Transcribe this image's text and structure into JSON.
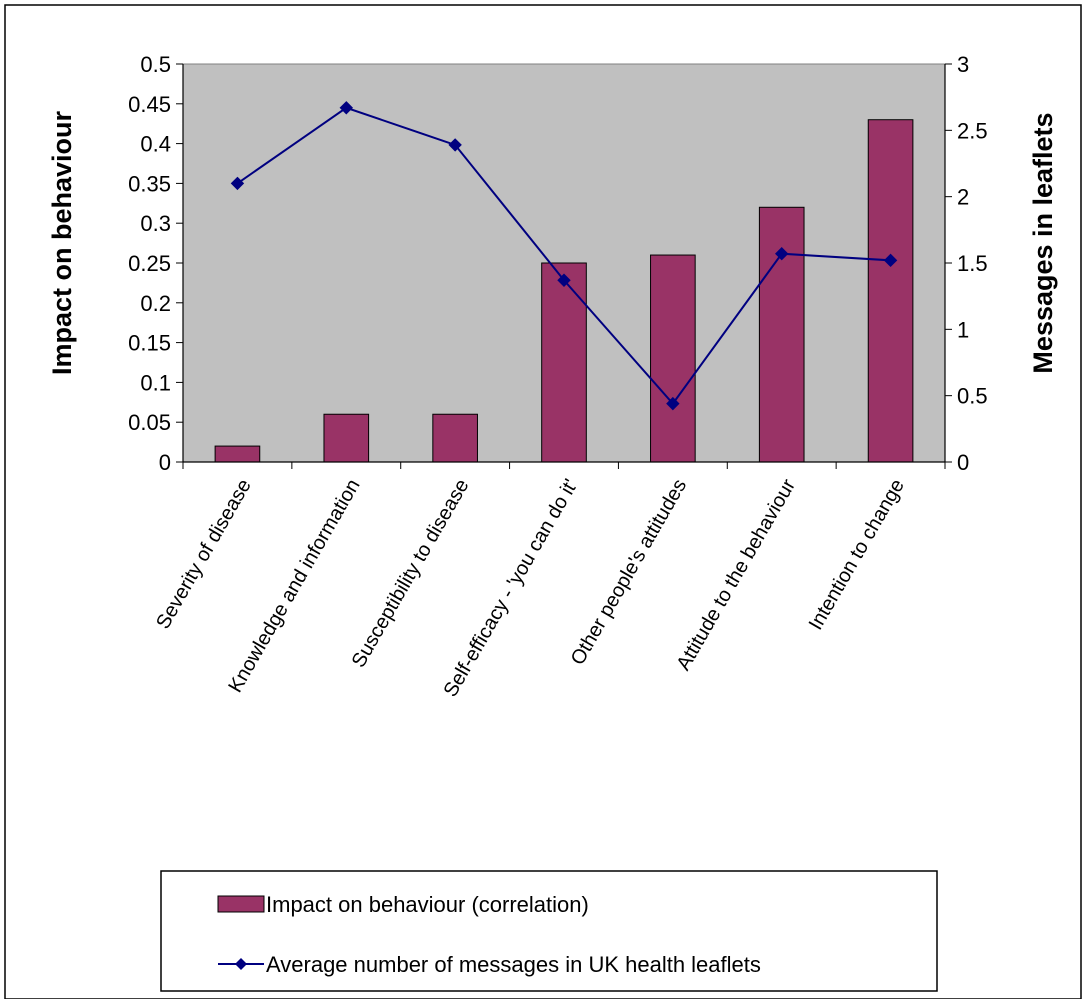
{
  "chart_data": {
    "type": "bar",
    "categories": [
      "Severity of disease",
      "Knowledge and information",
      "Susceptibility to disease",
      "Self-efficacy - 'you can do it'",
      "Other people's attitudes",
      "Attitude to the behaviour",
      "Intention to change"
    ],
    "series": [
      {
        "name": "Impact on behaviour (correlation)",
        "type": "bar",
        "axis": "left",
        "color": "#993366",
        "values": [
          0.02,
          0.06,
          0.06,
          0.25,
          0.26,
          0.32,
          0.43
        ]
      },
      {
        "name": "Average number of messages in UK health leaflets",
        "type": "line",
        "axis": "right",
        "color": "#000080",
        "marker": "diamond",
        "values": [
          2.1,
          2.67,
          2.39,
          1.37,
          0.44,
          1.57,
          1.52
        ]
      }
    ],
    "ylabel": "Impact on behaviour",
    "y2label": "Messages in leaflets",
    "ylim": [
      0,
      0.5
    ],
    "y2lim": [
      0,
      3
    ],
    "yticks": [
      "0",
      "0.05",
      "0.1",
      "0.15",
      "0.2",
      "0.25",
      "0.3",
      "0.35",
      "0.4",
      "0.45",
      "0.5"
    ],
    "y2ticks": [
      "0",
      "0.5",
      "1",
      "1.5",
      "2",
      "2.5",
      "3"
    ],
    "plot_background": "#c0c0c0",
    "grid": false,
    "legend": "bottom"
  }
}
